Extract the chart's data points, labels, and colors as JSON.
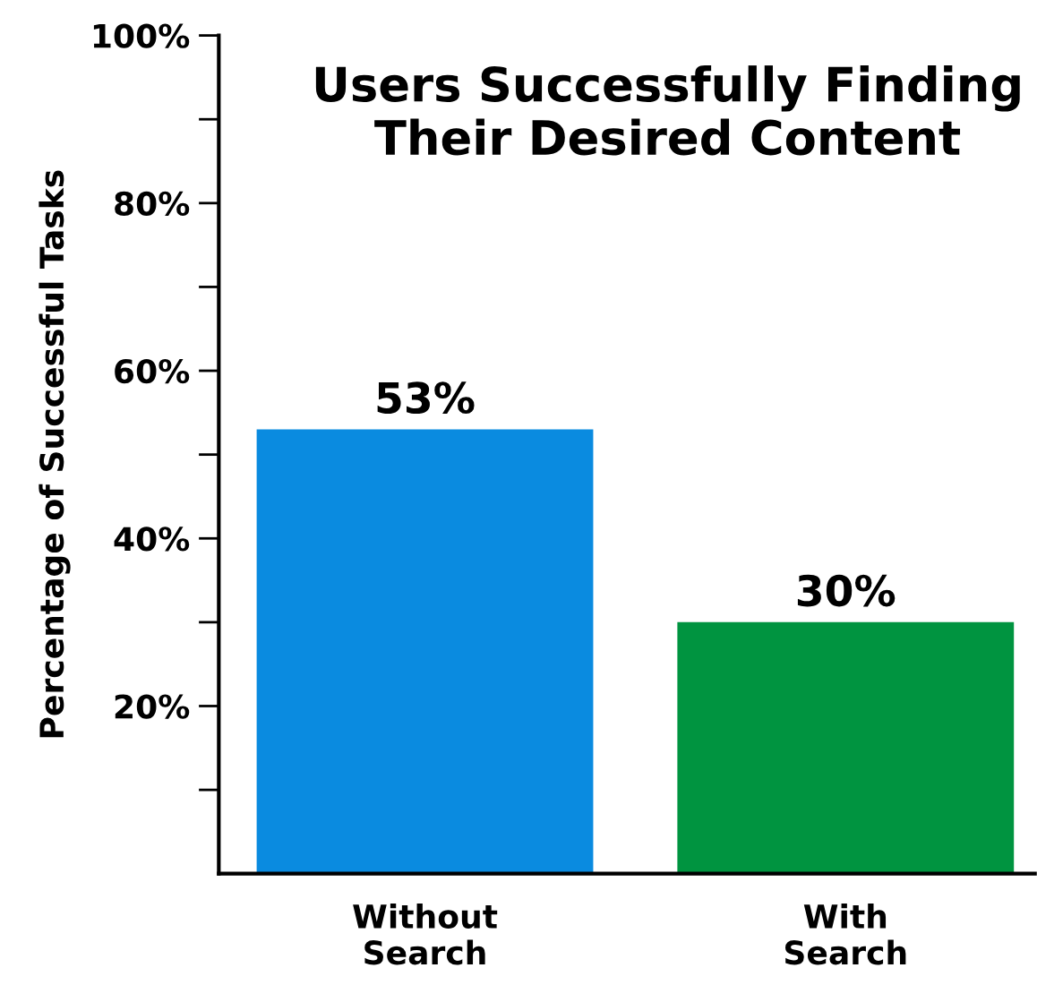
{
  "chart_data": {
    "type": "bar",
    "title": "Users Successfully Finding\nTheir Desired Content",
    "ylabel": "Percentage of Successful Tasks",
    "categories": [
      "Without\nSearch",
      "With\nSearch"
    ],
    "values": [
      53,
      30
    ],
    "colors": [
      "#0a8be0",
      "#009440"
    ],
    "value_labels": [
      "53%",
      "30%"
    ],
    "ylim": [
      0,
      100
    ],
    "yticks": [
      {
        "value": 10,
        "label": null
      },
      {
        "value": 20,
        "label": "20%"
      },
      {
        "value": 30,
        "label": null
      },
      {
        "value": 40,
        "label": "40%"
      },
      {
        "value": 50,
        "label": null
      },
      {
        "value": 60,
        "label": "60%"
      },
      {
        "value": 70,
        "label": null
      },
      {
        "value": 80,
        "label": "80%"
      },
      {
        "value": 90,
        "label": null
      },
      {
        "value": 100,
        "label": "100%"
      }
    ],
    "grid": false,
    "legend": false
  }
}
